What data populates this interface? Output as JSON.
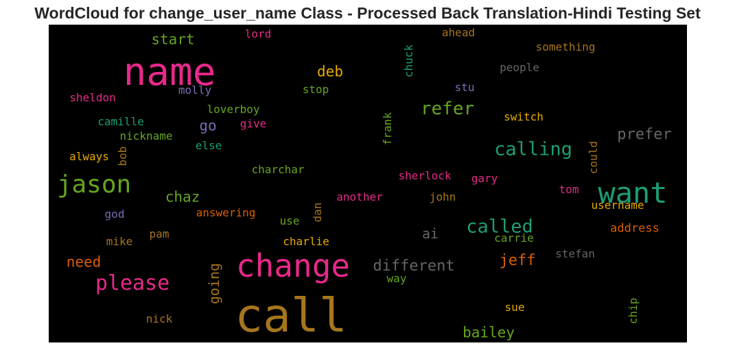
{
  "chart_data": {
    "type": "wordcloud",
    "title": "WordCloud for change_user_name Class - Processed Back Translation-Hindi Testing Set",
    "background": "#000000",
    "colormap": "Dark2",
    "words": [
      {
        "text": "call",
        "color": "#a6761d",
        "size": 68,
        "vertical": false
      },
      {
        "text": "name",
        "color": "#e7298a",
        "size": 56,
        "vertical": false
      },
      {
        "text": "change",
        "color": "#e7298a",
        "size": 46,
        "vertical": false
      },
      {
        "text": "want",
        "color": "#1b9e77",
        "size": 42,
        "vertical": false
      },
      {
        "text": "jason",
        "color": "#66a61e",
        "size": 36,
        "vertical": false
      },
      {
        "text": "please",
        "color": "#e7298a",
        "size": 30,
        "vertical": false
      },
      {
        "text": "calling",
        "color": "#1b9e77",
        "size": 27,
        "vertical": false
      },
      {
        "text": "called",
        "color": "#1b9e77",
        "size": 27,
        "vertical": false
      },
      {
        "text": "refer",
        "color": "#66a61e",
        "size": 26,
        "vertical": false
      },
      {
        "text": "different",
        "color": "#666666",
        "size": 22,
        "vertical": false
      },
      {
        "text": "jeff",
        "color": "#d95f02",
        "size": 22,
        "vertical": false
      },
      {
        "text": "prefer",
        "color": "#666666",
        "size": 22,
        "vertical": false
      },
      {
        "text": "bailey",
        "color": "#66a61e",
        "size": 21,
        "vertical": false
      },
      {
        "text": "chaz",
        "color": "#66a61e",
        "size": 21,
        "vertical": false
      },
      {
        "text": "need",
        "color": "#d95f02",
        "size": 21,
        "vertical": false
      },
      {
        "text": "go",
        "color": "#7570b3",
        "size": 21,
        "vertical": false
      },
      {
        "text": "start",
        "color": "#66a61e",
        "size": 21,
        "vertical": false
      },
      {
        "text": "deb",
        "color": "#e6ab02",
        "size": 21,
        "vertical": false
      },
      {
        "text": "going",
        "color": "#a6761d",
        "size": 20,
        "vertical": true
      },
      {
        "text": "ai",
        "color": "#666666",
        "size": 20,
        "vertical": false
      },
      {
        "text": "address",
        "color": "#d95f02",
        "size": 17,
        "vertical": false
      },
      {
        "text": "sheldon",
        "color": "#e7298a",
        "size": 16,
        "vertical": false
      },
      {
        "text": "molly",
        "color": "#7570b3",
        "size": 16,
        "vertical": false
      },
      {
        "text": "loverboy",
        "color": "#66a61e",
        "size": 16,
        "vertical": false
      },
      {
        "text": "camille",
        "color": "#1b9e77",
        "size": 16,
        "vertical": false
      },
      {
        "text": "nickname",
        "color": "#66a61e",
        "size": 16,
        "vertical": false
      },
      {
        "text": "give",
        "color": "#e7298a",
        "size": 16,
        "vertical": false
      },
      {
        "text": "else",
        "color": "#1b9e77",
        "size": 16,
        "vertical": false
      },
      {
        "text": "always",
        "color": "#e6ab02",
        "size": 16,
        "vertical": false
      },
      {
        "text": "bob",
        "color": "#a6761d",
        "size": 16,
        "vertical": true
      },
      {
        "text": "charchar",
        "color": "#66a61e",
        "size": 16,
        "vertical": false
      },
      {
        "text": "god",
        "color": "#7570b3",
        "size": 16,
        "vertical": false
      },
      {
        "text": "answering",
        "color": "#d95f02",
        "size": 16,
        "vertical": false
      },
      {
        "text": "use",
        "color": "#66a61e",
        "size": 16,
        "vertical": false
      },
      {
        "text": "dan",
        "color": "#a6761d",
        "size": 16,
        "vertical": true
      },
      {
        "text": "mike",
        "color": "#a6761d",
        "size": 16,
        "vertical": false
      },
      {
        "text": "pam",
        "color": "#a6761d",
        "size": 16,
        "vertical": false
      },
      {
        "text": "charlie",
        "color": "#e6ab02",
        "size": 16,
        "vertical": false
      },
      {
        "text": "nick",
        "color": "#a6761d",
        "size": 16,
        "vertical": false
      },
      {
        "text": "lord",
        "color": "#e7298a",
        "size": 16,
        "vertical": false
      },
      {
        "text": "stop",
        "color": "#66a61e",
        "size": 16,
        "vertical": false
      },
      {
        "text": "chuck",
        "color": "#1b9e77",
        "size": 16,
        "vertical": true
      },
      {
        "text": "frank",
        "color": "#66a61e",
        "size": 16,
        "vertical": true
      },
      {
        "text": "ahead",
        "color": "#a6761d",
        "size": 16,
        "vertical": false
      },
      {
        "text": "something",
        "color": "#a6761d",
        "size": 16,
        "vertical": false
      },
      {
        "text": "people",
        "color": "#666666",
        "size": 16,
        "vertical": false
      },
      {
        "text": "stu",
        "color": "#7570b3",
        "size": 16,
        "vertical": false
      },
      {
        "text": "switch",
        "color": "#e6ab02",
        "size": 16,
        "vertical": false
      },
      {
        "text": "could",
        "color": "#a6761d",
        "size": 16,
        "vertical": true
      },
      {
        "text": "sherlock",
        "color": "#e7298a",
        "size": 16,
        "vertical": false
      },
      {
        "text": "gary",
        "color": "#e7298a",
        "size": 16,
        "vertical": false
      },
      {
        "text": "tom",
        "color": "#e7298a",
        "size": 16,
        "vertical": false
      },
      {
        "text": "another",
        "color": "#e7298a",
        "size": 16,
        "vertical": false
      },
      {
        "text": "john",
        "color": "#a6761d",
        "size": 16,
        "vertical": false
      },
      {
        "text": "username",
        "color": "#e6ab02",
        "size": 16,
        "vertical": false
      },
      {
        "text": "carrie",
        "color": "#66a61e",
        "size": 16,
        "vertical": false
      },
      {
        "text": "stefan",
        "color": "#666666",
        "size": 16,
        "vertical": false
      },
      {
        "text": "way",
        "color": "#66a61e",
        "size": 16,
        "vertical": false
      },
      {
        "text": "sue",
        "color": "#e6ab02",
        "size": 16,
        "vertical": false
      },
      {
        "text": "chip",
        "color": "#66a61e",
        "size": 16,
        "vertical": true
      }
    ]
  }
}
